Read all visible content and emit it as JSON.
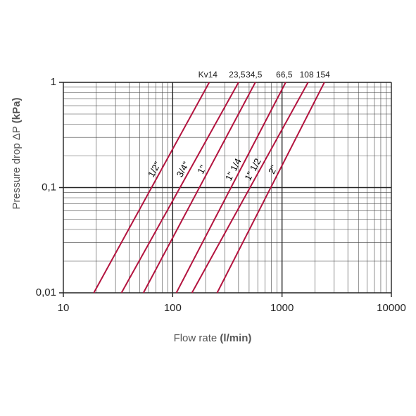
{
  "chart_data": {
    "type": "line",
    "x_label": "Flow rate",
    "x_unit": "(l/min)",
    "y_label": "Pressure drop ΔP",
    "y_unit": "(kPa)",
    "log_x": true,
    "log_y": true,
    "grid": true,
    "xlim": [
      10,
      10000
    ],
    "xticks": [
      10,
      100,
      1000,
      10000
    ],
    "ylim": [
      0.01,
      1
    ],
    "yticks": [
      {
        "value": 0.01,
        "label": "0,01"
      },
      {
        "value": 0.1,
        "label": "0,1"
      },
      1
    ],
    "series": [
      {
        "name": "1/2\"",
        "kv_label": "Kv14",
        "color": "#b3143f",
        "x": [
          19,
          216
        ],
        "y": [
          0.01,
          1
        ]
      },
      {
        "name": "3/4\"",
        "kv_label": "23,5",
        "color": "#b3143f",
        "x": [
          34,
          400
        ],
        "y": [
          0.01,
          1
        ]
      },
      {
        "name": "1\"",
        "kv_label": "34,5",
        "color": "#b3143f",
        "x": [
          54,
          570
        ],
        "y": [
          0.01,
          1
        ]
      },
      {
        "name": "1\" 1/4",
        "kv_label": "66,5",
        "color": "#b3143f",
        "x": [
          108,
          1080
        ],
        "y": [
          0.01,
          1
        ]
      },
      {
        "name": "1\" 1/2",
        "kv_label": "108",
        "color": "#b3143f",
        "x": [
          150,
          1730
        ],
        "y": [
          0.01,
          1
        ]
      },
      {
        "name": "2\"",
        "kv_label": "154",
        "color": "#b3143f",
        "x": [
          255,
          2440
        ],
        "y": [
          0.01,
          1
        ]
      }
    ]
  }
}
